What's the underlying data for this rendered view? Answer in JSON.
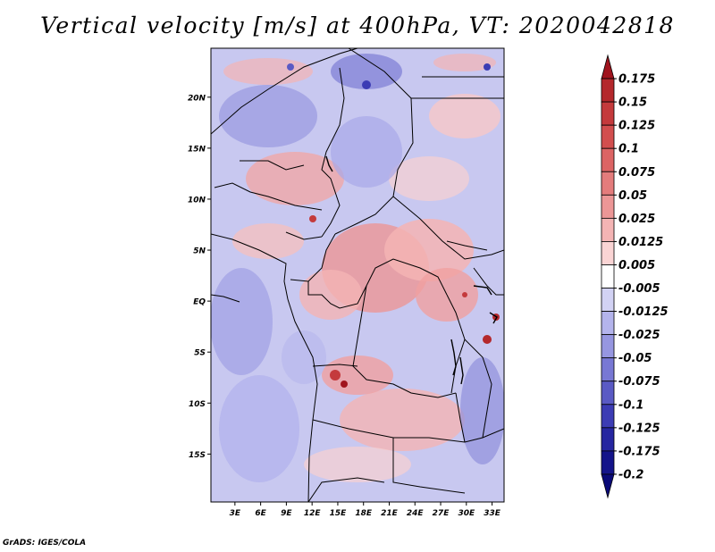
{
  "title": "Vertical velocity [m/s] at 400hPa, VT: 2020042818",
  "footer": "GrADS: IGES/COLA",
  "map": {
    "lat_labels": [
      "20N",
      "15N",
      "10N",
      "5N",
      "EQ",
      "5S",
      "10S",
      "15S"
    ],
    "lon_labels": [
      "3E",
      "6E",
      "9E",
      "12E",
      "15E",
      "18E",
      "21E",
      "24E",
      "27E",
      "30E",
      "33E"
    ],
    "lat_values": [
      20,
      15,
      10,
      5,
      0,
      -5,
      -10,
      -15
    ],
    "lon_values": [
      3,
      6,
      9,
      12,
      15,
      18,
      21,
      24,
      27,
      30,
      33
    ],
    "lat_range": [
      -19.7,
      24.8
    ],
    "lon_range": [
      0.2,
      34.4
    ]
  },
  "colorbar": {
    "labels": [
      "0.175",
      "0.15",
      "0.125",
      "0.1",
      "0.075",
      "0.05",
      "0.025",
      "0.0125",
      "0.005",
      "-0.005",
      "-0.0125",
      "-0.025",
      "-0.05",
      "-0.075",
      "-0.1",
      "-0.125",
      "-0.175",
      "-0.2"
    ],
    "colors": [
      "#a0141e",
      "#b4282c",
      "#c43a3c",
      "#d24e4e",
      "#dc6464",
      "#e47c7c",
      "#ec9696",
      "#f4b4b4",
      "#fad4d4",
      "#ffffff",
      "#d2d2f4",
      "#b4b4ec",
      "#9696e0",
      "#7878d4",
      "#5a5ac4",
      "#3c3cb4",
      "#2626a0",
      "#14148a",
      "#0a0a78"
    ]
  }
}
